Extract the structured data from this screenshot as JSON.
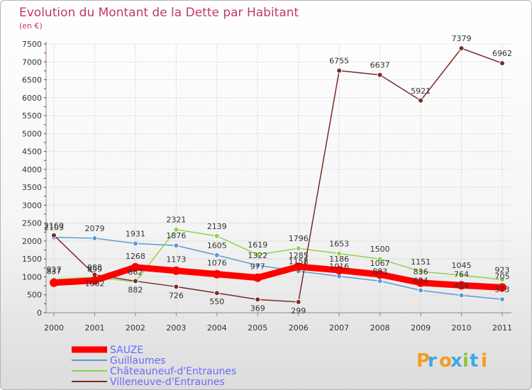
{
  "chart_data": {
    "type": "line",
    "title": "Evolution du Montant de la Dette par Habitant",
    "subtitle": "(en €)",
    "x": [
      "2000",
      "2001",
      "2002",
      "2003",
      "2004",
      "2005",
      "2006",
      "2007",
      "2008",
      "2009",
      "2010",
      "2011"
    ],
    "yticks": [
      "0",
      "500",
      "1000",
      "1500",
      "2000",
      "2500",
      "3000",
      "3500",
      "4000",
      "4500",
      "5000",
      "5500",
      "6000",
      "6500",
      "7000",
      "7500"
    ],
    "ylim": [
      0,
      7500
    ],
    "grid": true,
    "legend_position": "bottom-left",
    "series": [
      {
        "name": "SAUZE",
        "color": "#ff0000",
        "values": [
          837,
          899,
          1268,
          1173,
          1076,
          977,
          1285,
          1186,
          1067,
          836,
          764,
          705
        ],
        "labels": [
          "837",
          "899",
          "1268",
          "1173",
          "1076",
          "977",
          "1285",
          "1186",
          "1067",
          "836",
          "764",
          "705"
        ]
      },
      {
        "name": "Guillaumes",
        "color": "#5b9bd5",
        "values": [
          2103,
          2079,
          1931,
          1876,
          1605,
          1322,
          1158,
          1016,
          883,
          624,
          484,
          373
        ],
        "labels": [
          "2103",
          "2079",
          "1931",
          "1876",
          "1605",
          "1322",
          "1158",
          "1016",
          "883",
          "624",
          "484",
          "373"
        ]
      },
      {
        "name": "Châteauneuf-d'Entraunes",
        "color": "#92d050",
        "values": [
          927,
          988,
          862,
          2321,
          2139,
          1619,
          1796,
          1653,
          1500,
          1151,
          1045,
          923
        ],
        "labels": [
          "927",
          "988",
          "862",
          "2321",
          "2139",
          "1619",
          "1796",
          "1653",
          "1500",
          "1151",
          "1045",
          "923"
        ]
      },
      {
        "name": "Villeneuve-d'Entraunes",
        "color": "#7b2a2a",
        "values": [
          2160,
          1062,
          882,
          726,
          550,
          369,
          299,
          6755,
          6637,
          5921,
          7379,
          6962
        ],
        "labels": [
          "2160",
          "1062",
          "882",
          "726",
          "550",
          "369",
          "299",
          "6755",
          "6637",
          "5921",
          "7379",
          "6962"
        ]
      }
    ]
  },
  "logo": {
    "text": "Proxiti",
    "colors": [
      "#f59b1f",
      "#3fa9e0",
      "#f59b1f",
      "#3fa9e0",
      "#8cc63f",
      "#3fa9e0",
      "#f59b1f"
    ]
  }
}
